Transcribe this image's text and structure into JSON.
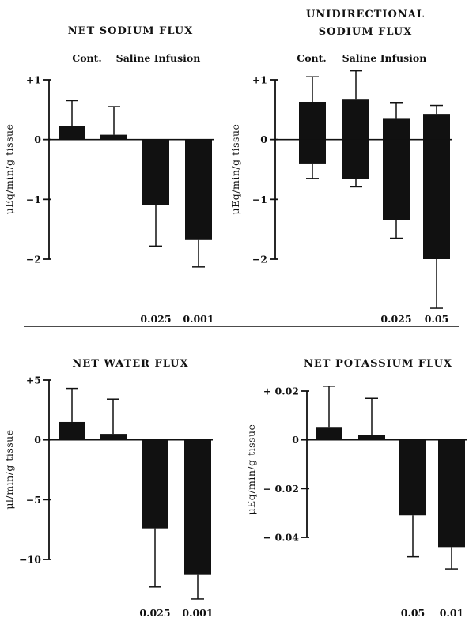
{
  "chart_data": [
    {
      "type": "bar",
      "title": [
        "NET SODIUM FLUX"
      ],
      "group_labels": [
        "Cont.",
        "Saline Infusion"
      ],
      "ylabel": "μEq/min/g  tissue",
      "ylim": [
        -2,
        1
      ],
      "yticks": [
        {
          "v": 1,
          "label": "+1"
        },
        {
          "v": 0,
          "label": "0"
        },
        {
          "v": -1,
          "label": "−1"
        },
        {
          "v": -2,
          "label": "−2"
        }
      ],
      "bars": [
        {
          "value": 0.23,
          "err": 0.42
        },
        {
          "value": 0.08,
          "err": 0.47
        },
        {
          "value": -1.1,
          "err": 0.68
        },
        {
          "value": -1.68,
          "err": 0.45
        }
      ],
      "p_values": [
        "",
        "",
        "0.025",
        "0.001"
      ]
    },
    {
      "type": "bar",
      "title": [
        "UNIDIRECTIONAL",
        "SODIUM FLUX"
      ],
      "group_labels": [
        "Cont.",
        "Saline Infusion"
      ],
      "ylabel": "μEq/min/g  tissue",
      "ylim": [
        -2,
        1
      ],
      "yticks": [
        {
          "v": 1,
          "label": "+1"
        },
        {
          "v": 0,
          "label": "0"
        },
        {
          "v": -1,
          "label": "−1"
        },
        {
          "v": -2,
          "label": "−2"
        }
      ],
      "bars": [
        {
          "value": 0.63,
          "err": 0.42,
          "neg_value": -0.4,
          "neg_err": 0.25
        },
        {
          "value": 0.68,
          "err": 0.47,
          "neg_value": -0.66,
          "neg_err": 0.13
        },
        {
          "value": 0.36,
          "err": 0.26,
          "neg_value": -1.35,
          "neg_err": 0.3
        },
        {
          "value": 0.43,
          "err": 0.14,
          "neg_value": -2.0,
          "neg_err": 0.82
        }
      ],
      "p_values": [
        "",
        "",
        "0.025",
        "0.05"
      ]
    },
    {
      "type": "bar",
      "title": [
        "NET WATER FLUX"
      ],
      "group_labels": [],
      "ylabel": "μl/min/g  tissue",
      "ylim": [
        -10,
        5
      ],
      "yticks": [
        {
          "v": 5,
          "label": "+5"
        },
        {
          "v": 0,
          "label": "0"
        },
        {
          "v": -5,
          "label": "−5"
        },
        {
          "v": -10,
          "label": "−10"
        }
      ],
      "bars": [
        {
          "value": 1.5,
          "err": 2.8
        },
        {
          "value": 0.5,
          "err": 2.9
        },
        {
          "value": -7.4,
          "err": 4.9
        },
        {
          "value": -11.3,
          "err": 2.0
        }
      ],
      "p_values": [
        "",
        "",
        "0.025",
        "0.001"
      ]
    },
    {
      "type": "bar",
      "title": [
        "NET POTASSIUM FLUX"
      ],
      "group_labels": [],
      "ylabel": "μEq/min/g  tissue",
      "ylim": [
        -0.04,
        0.02
      ],
      "yticks": [
        {
          "v": 0.02,
          "label": "+ 0.02"
        },
        {
          "v": 0,
          "label": "0"
        },
        {
          "v": -0.02,
          "label": "− 0.02"
        },
        {
          "v": -0.04,
          "label": "− 0.04"
        }
      ],
      "bars": [
        {
          "value": 0.005,
          "err": 0.017
        },
        {
          "value": 0.002,
          "err": 0.015
        },
        {
          "value": -0.031,
          "err": 0.017
        },
        {
          "value": -0.044,
          "err": 0.009
        }
      ],
      "p_values": [
        "",
        "",
        "0.05",
        "0.01"
      ]
    }
  ]
}
